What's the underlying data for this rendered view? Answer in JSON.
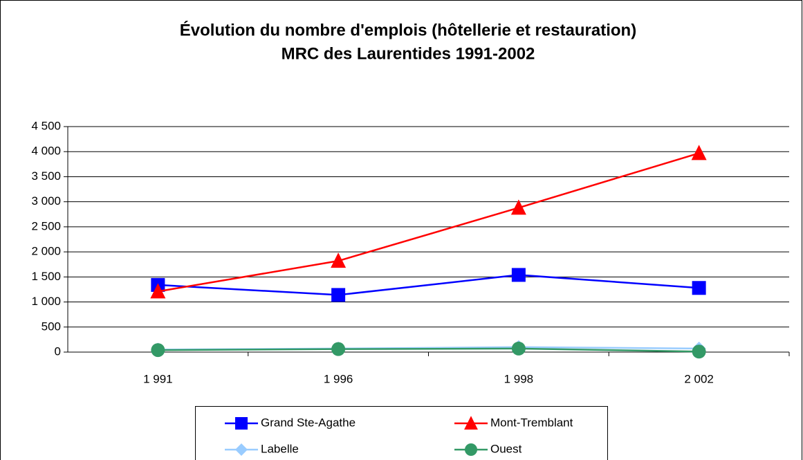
{
  "chart_data": {
    "type": "line",
    "title": "Évolution du nombre d'emplois (hôtellerie et restauration)",
    "subtitle": "MRC des Laurentides 1991-2002",
    "categories": [
      "1 991",
      "1 996",
      "1 998",
      "2 002"
    ],
    "series": [
      {
        "name": "Grand Ste-Agathe",
        "color": "#0000ff",
        "marker": "square",
        "values": [
          1340,
          1140,
          1540,
          1280
        ]
      },
      {
        "name": "Mont-Tremblant",
        "color": "#ff0000",
        "marker": "triangle",
        "values": [
          1210,
          1820,
          2880,
          3970
        ]
      },
      {
        "name": "Labelle",
        "color": "#99ccff",
        "marker": "diamond",
        "values": [
          50,
          70,
          100,
          70
        ]
      },
      {
        "name": "Ouest",
        "color": "#339966",
        "marker": "circle",
        "values": [
          40,
          60,
          70,
          10
        ]
      }
    ],
    "ylim": [
      0,
      4500
    ],
    "yticks": [
      0,
      500,
      {
        "value": 1000,
        "label": "1 000"
      },
      {
        "value": 1500,
        "label": "1 500"
      },
      {
        "value": 2000,
        "label": "2 000"
      },
      {
        "value": 2500,
        "label": "2 500"
      },
      {
        "value": 3000,
        "label": "3 000"
      },
      {
        "value": 3500,
        "label": "3 500"
      },
      {
        "value": 4000,
        "label": "4 000"
      },
      {
        "value": 4500,
        "label": "4 500"
      }
    ],
    "grid": true,
    "legend": "bottom"
  }
}
